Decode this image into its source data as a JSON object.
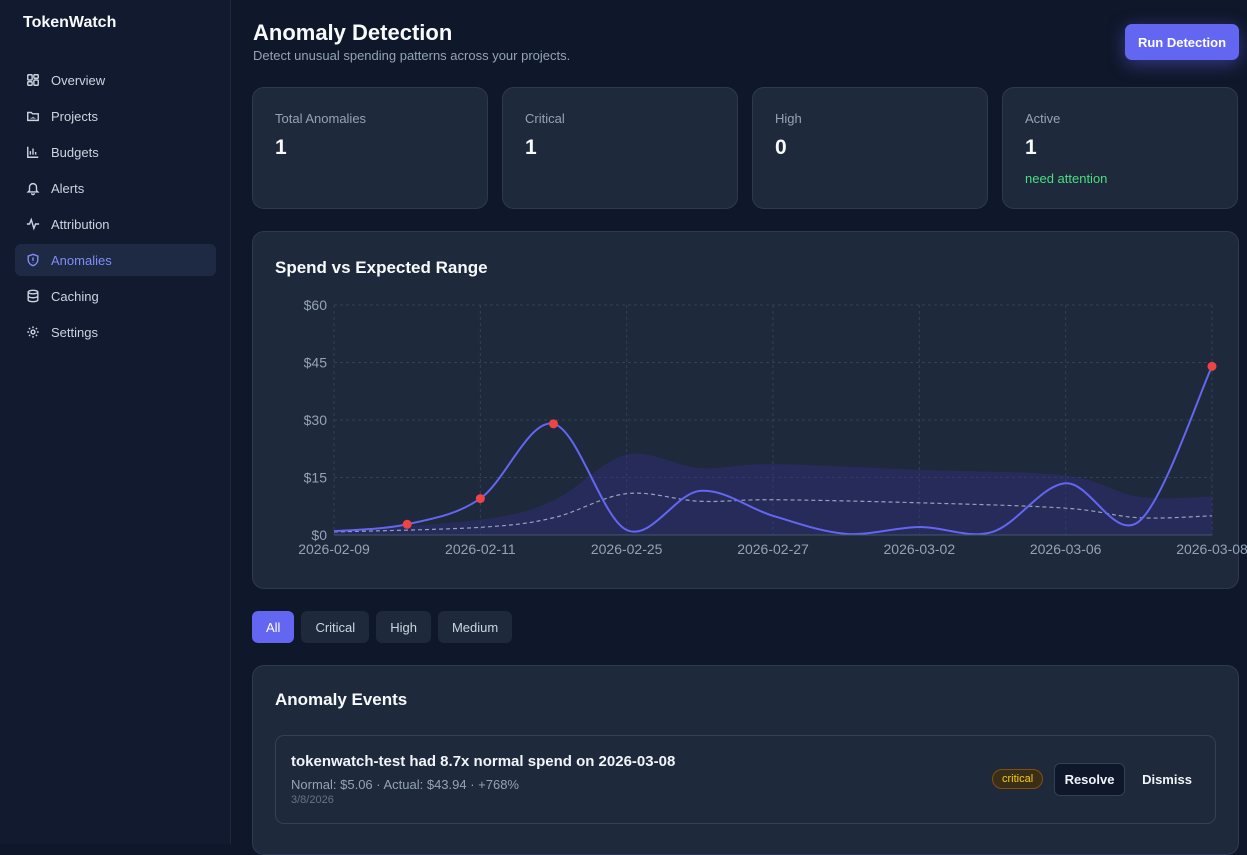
{
  "app": {
    "brand": "TokenWatch"
  },
  "sidebar": {
    "items": [
      {
        "label": "Overview",
        "icon": "dashboard-icon",
        "active": false
      },
      {
        "label": "Projects",
        "icon": "folder-icon",
        "active": false
      },
      {
        "label": "Budgets",
        "icon": "bar-chart-icon",
        "active": false
      },
      {
        "label": "Alerts",
        "icon": "bell-icon",
        "active": false
      },
      {
        "label": "Attribution",
        "icon": "activity-icon",
        "active": false
      },
      {
        "label": "Anomalies",
        "icon": "shield-icon",
        "active": true
      },
      {
        "label": "Caching",
        "icon": "database-icon",
        "active": false
      },
      {
        "label": "Settings",
        "icon": "gear-icon",
        "active": false
      }
    ]
  },
  "header": {
    "title": "Anomaly Detection",
    "subtitle": "Detect unusual spending patterns across your projects.",
    "run_button": "Run Detection"
  },
  "stats": [
    {
      "label": "Total Anomalies",
      "value": "1",
      "note": ""
    },
    {
      "label": "Critical",
      "value": "1",
      "note": ""
    },
    {
      "label": "High",
      "value": "0",
      "note": ""
    },
    {
      "label": "Active",
      "value": "1",
      "note": "need attention"
    }
  ],
  "chart_data": {
    "type": "line",
    "title": "Spend vs Expected Range",
    "xlabel": "",
    "ylabel": "",
    "ylim": [
      0,
      60
    ],
    "y_ticks": [
      "$0",
      "$15",
      "$30",
      "$45",
      "$60"
    ],
    "x_ticks": [
      "2026-02-09",
      "2026-02-11",
      "2026-02-25",
      "2026-02-27",
      "2026-03-02",
      "2026-03-06",
      "2026-03-08"
    ],
    "grid": true,
    "colors": {
      "actual": "#6366f1",
      "anomaly": "#ef4444",
      "expected": "#94a3b8",
      "band": "#312e81"
    },
    "series": [
      {
        "name": "",
        "kind": "actual",
        "x": [
          0,
          0.5,
          1,
          1.5,
          2,
          2.5,
          3,
          3.5,
          4,
          4.5,
          5,
          5.5,
          6
        ],
        "values": [
          1.0,
          2.8,
          9.5,
          29.0,
          1.3,
          11.5,
          5.0,
          0.3,
          2.1,
          0.8,
          13.5,
          3.5,
          44.0
        ]
      },
      {
        "name": "",
        "kind": "expected",
        "x": [
          0,
          1,
          1.5,
          2,
          2.5,
          3,
          4,
          5,
          5.5,
          6
        ],
        "values": [
          0.8,
          2.0,
          4.5,
          10.8,
          8.8,
          9.2,
          8.4,
          7.0,
          4.5,
          5.0
        ]
      },
      {
        "name": "",
        "kind": "band-upper",
        "x": [
          0,
          1,
          1.5,
          2,
          2.5,
          3,
          4,
          5,
          5.5,
          6
        ],
        "values": [
          1.2,
          4.0,
          9.0,
          21.0,
          17.5,
          18.5,
          17.0,
          15.5,
          10.0,
          10.0
        ]
      }
    ],
    "anomaly_points": [
      {
        "x": 0.5,
        "y": 2.8
      },
      {
        "x": 1,
        "y": 9.5
      },
      {
        "x": 1.5,
        "y": 29.0
      },
      {
        "x": 6,
        "y": 44.0
      }
    ]
  },
  "filters": [
    {
      "label": "All",
      "active": true
    },
    {
      "label": "Critical",
      "active": false
    },
    {
      "label": "High",
      "active": false
    },
    {
      "label": "Medium",
      "active": false
    }
  ],
  "events": {
    "title": "Anomaly Events",
    "items": [
      {
        "title": "tokenwatch-test had 8.7x normal spend on 2026-03-08",
        "detail": "Normal: $5.06 · Actual: $43.94 · +768%",
        "date": "3/8/2026",
        "severity": "critical",
        "resolve": "Resolve",
        "dismiss": "Dismiss"
      }
    ]
  }
}
